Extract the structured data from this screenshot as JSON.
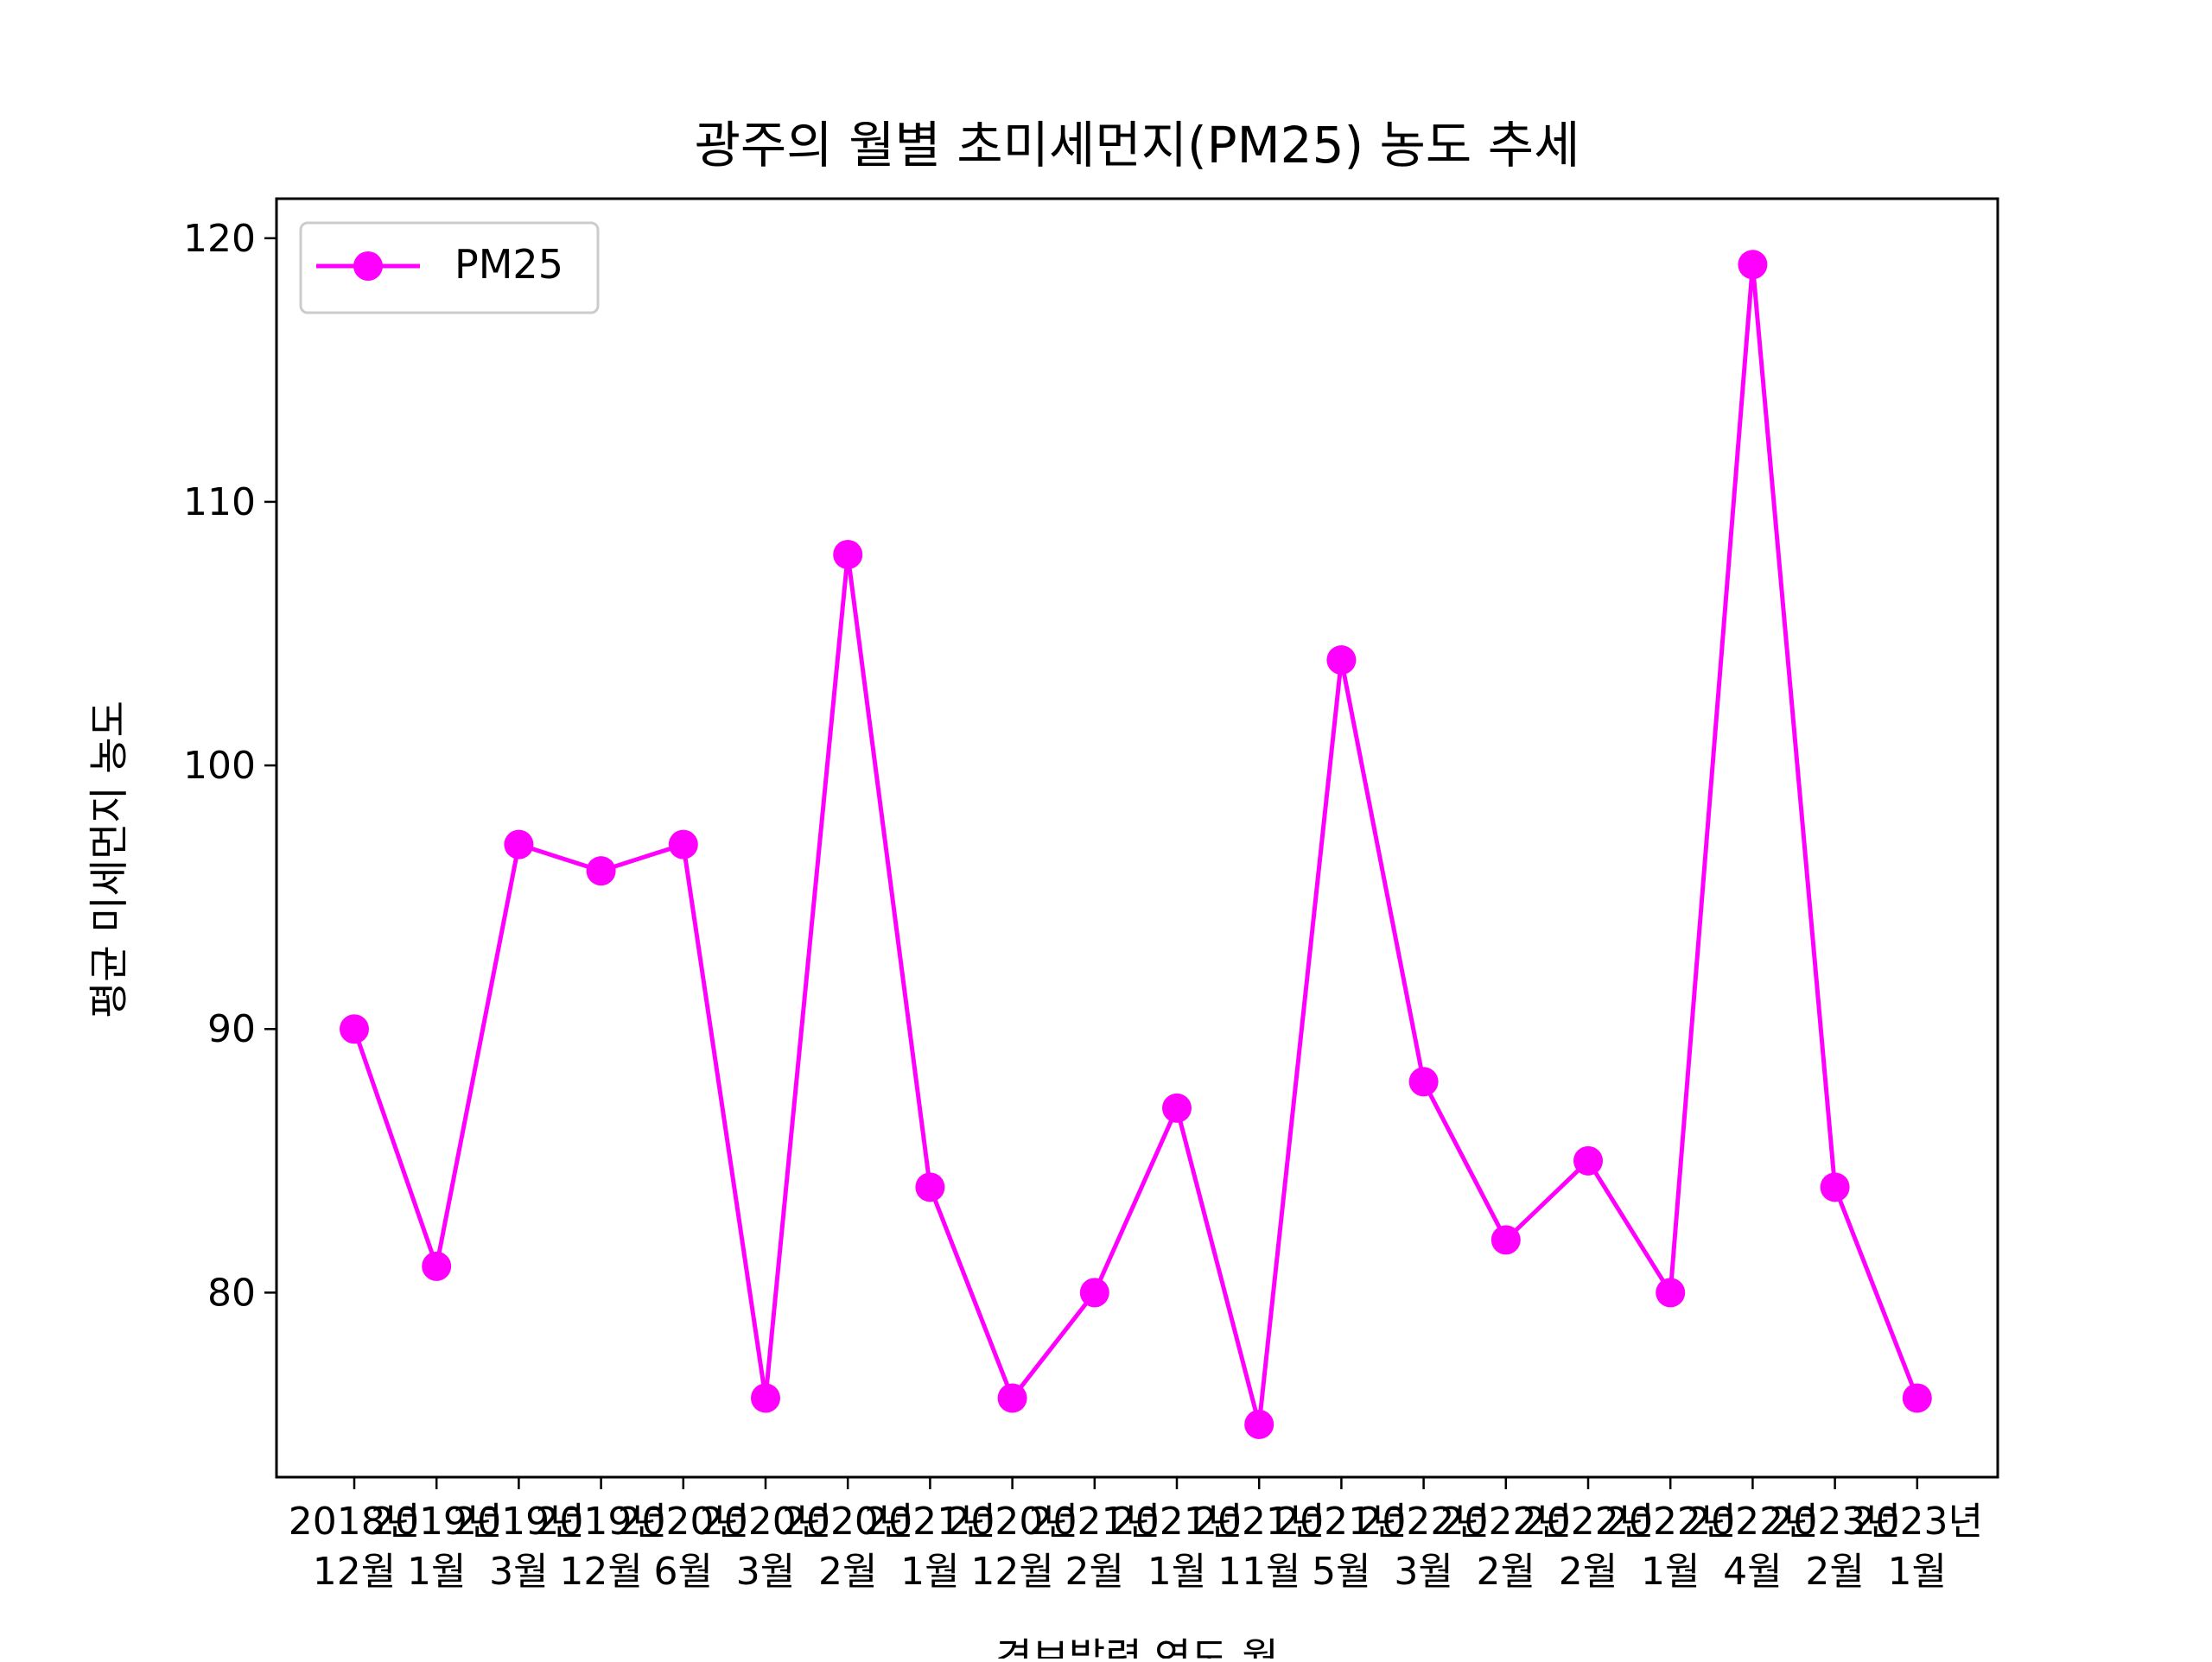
{
  "chart_data": {
    "type": "line",
    "title": "광주의 월별 초미세먼지(PM25) 농도 추세",
    "xlabel": "경보발령 연도-월",
    "ylabel": "평균 미세먼지 농도",
    "categories": [
      "2018년\n12월",
      "2019년\n1월",
      "2019년\n3월",
      "2019년\n12월",
      "2020년\n6월",
      "2020년\n3월",
      "2020년\n2월",
      "2021년\n1월",
      "2020년\n12월",
      "2021년\n2월",
      "2021년\n1월",
      "2021년\n11월",
      "2021년\n5월",
      "2022년\n3월",
      "2022년\n2월",
      "2022년\n2월",
      "2022년\n1월",
      "2022년\n4월",
      "2023년\n2월",
      "2023년\n1월"
    ],
    "series": [
      {
        "name": "PM25",
        "values": [
          90,
          81,
          97,
          96,
          97,
          76,
          108,
          84,
          76,
          80,
          87,
          75,
          104,
          88,
          82,
          85,
          80,
          119,
          84,
          76
        ],
        "color": "#ff00ff",
        "marker": "circle"
      }
    ],
    "ylim": [
      73,
      121.5
    ],
    "yticks": [
      80,
      90,
      100,
      110,
      120
    ],
    "grid": false,
    "legend": {
      "placement": "top-left",
      "entries": [
        "PM25"
      ]
    }
  }
}
